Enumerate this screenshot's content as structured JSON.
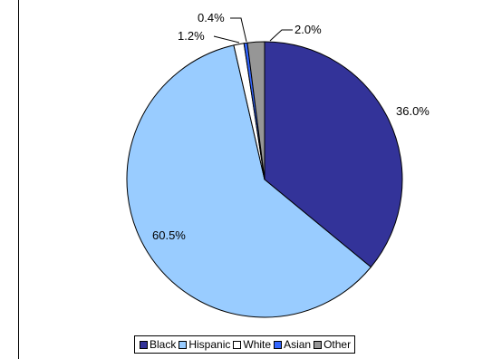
{
  "chart_data": {
    "type": "pie",
    "categories": [
      "Black",
      "Hispanic",
      "White",
      "Asian",
      "Other"
    ],
    "values": [
      36.0,
      60.5,
      1.2,
      0.4,
      2.0
    ],
    "labels": [
      "36.0%",
      "60.5%",
      "1.2%",
      "0.4%",
      "2.0%"
    ],
    "colors": [
      "#333399",
      "#99ccff",
      "#ffffff",
      "#3366ff",
      "#969696"
    ],
    "start_angle_deg": 0,
    "direction": "clockwise",
    "legend_position": "bottom",
    "title": ""
  }
}
